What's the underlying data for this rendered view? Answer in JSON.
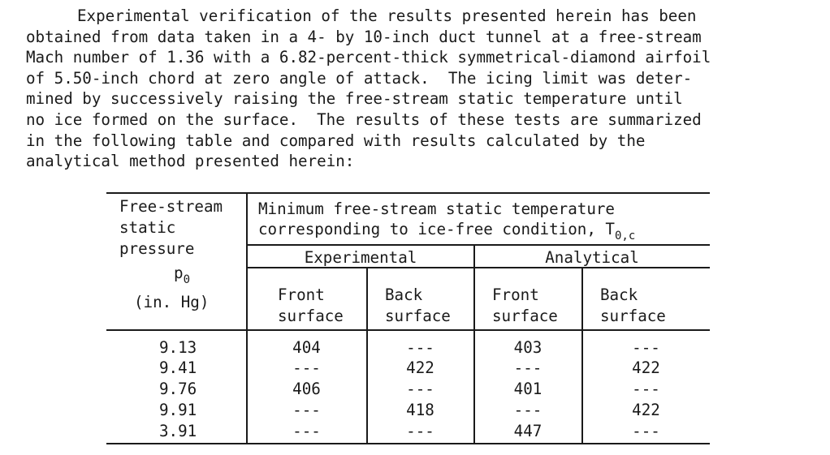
{
  "paragraph": [
    "Experimental verification of the results presented herein has been",
    "obtained from data taken in a 4- by 10-inch duct tunnel at a free-stream",
    "Mach number of 1.36 with a 6.82-percent-thick symmetrical-diamond airfoil",
    "of 5.50-inch chord at zero angle of attack.  The icing limit was deter-",
    "mined by successively raising the free-stream static temperature until",
    "no ice formed on the surface.  The results of these tests are summarized",
    "in the following table and compared with results calculated by the",
    "analytical method presented herein:"
  ],
  "table": {
    "col1_header": [
      "Free-stream",
      "static",
      "pressure"
    ],
    "col1_symbol": "p",
    "col1_symbol_sub": "0",
    "col1_units": "(in. Hg)",
    "span_header_line1": "Minimum free-stream static temperature",
    "span_header_line2": "corresponding to ice-free condition, T",
    "span_header_sub": "0,c",
    "group_experimental": "Experimental",
    "group_analytical": "Analytical",
    "sub_front": [
      "Front",
      "surface"
    ],
    "sub_back": [
      "Back",
      "surface"
    ],
    "rows": [
      {
        "p": "9.13",
        "exp_front": "404",
        "exp_back": "---",
        "ana_front": "403",
        "ana_back": "---"
      },
      {
        "p": "9.41",
        "exp_front": "---",
        "exp_back": "422",
        "ana_front": "---",
        "ana_back": "422"
      },
      {
        "p": "9.76",
        "exp_front": "406",
        "exp_back": "---",
        "ana_front": "401",
        "ana_back": "---"
      },
      {
        "p": "9.91",
        "exp_front": "---",
        "exp_back": "418",
        "ana_front": "---",
        "ana_back": "422"
      },
      {
        "p": "3.91",
        "exp_front": "---",
        "exp_back": "---",
        "ana_front": "447",
        "ana_back": "---"
      }
    ]
  }
}
